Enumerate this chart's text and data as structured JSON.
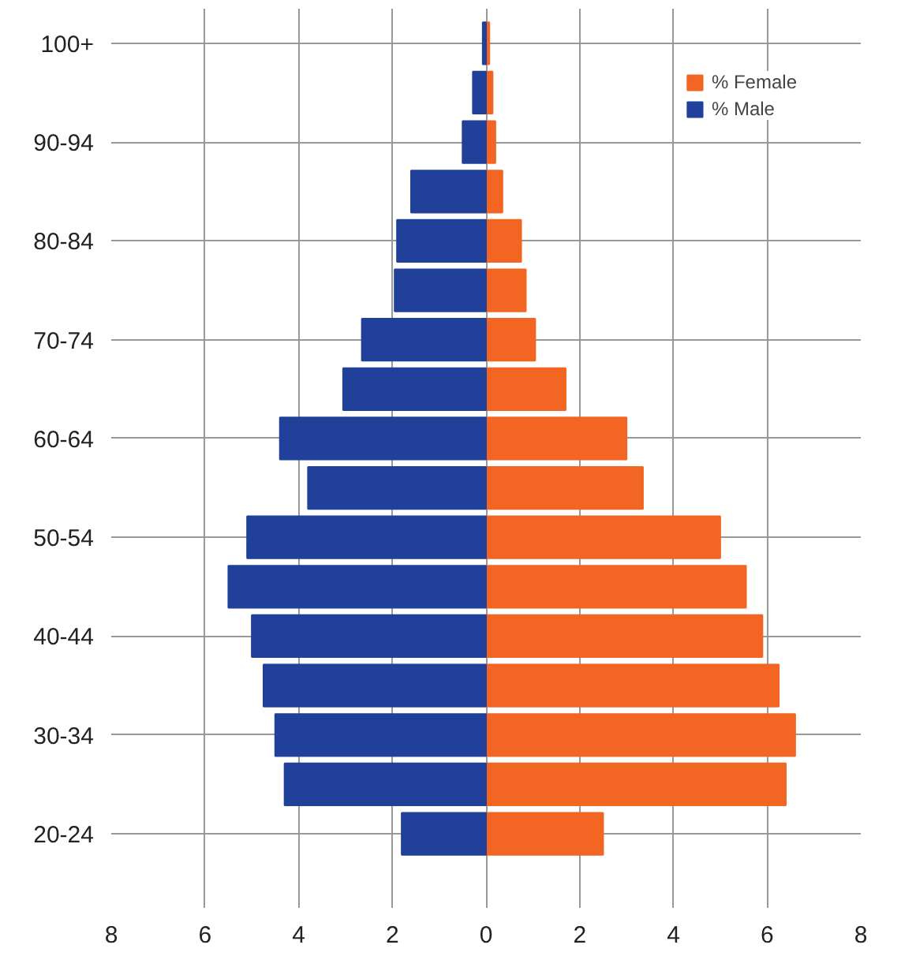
{
  "chart_data": {
    "type": "bar",
    "orientation": "horizontal",
    "categories": [
      "100+",
      null,
      "90-94",
      null,
      "80-84",
      null,
      "70-74",
      null,
      "60-64",
      null,
      "50-54",
      null,
      "40-44",
      null,
      "30-34",
      null,
      "20-24"
    ],
    "series": [
      {
        "name": "% Female",
        "color": "#f26522",
        "values": [
          0.07,
          0.14,
          0.2,
          0.35,
          0.75,
          0.85,
          1.05,
          1.7,
          3.0,
          3.35,
          5.0,
          5.55,
          5.9,
          6.25,
          6.6,
          6.4,
          2.5
        ]
      },
      {
        "name": "% Male",
        "color": "#21409a",
        "values": [
          -0.07,
          -0.28,
          -0.5,
          -1.6,
          -1.9,
          -1.95,
          -2.65,
          -3.05,
          -4.4,
          -3.8,
          -5.1,
          -5.5,
          -5.0,
          -4.75,
          -4.5,
          -4.3,
          -1.8
        ]
      }
    ],
    "xlim": [
      -8,
      8
    ],
    "xticks": [
      {
        "value": -8,
        "label": "8"
      },
      {
        "value": -6,
        "label": "6"
      },
      {
        "value": -4,
        "label": "4"
      },
      {
        "value": -2,
        "label": "2"
      },
      0,
      2,
      4,
      6,
      8
    ],
    "stacked": true,
    "grid": true,
    "legend": "top right"
  }
}
